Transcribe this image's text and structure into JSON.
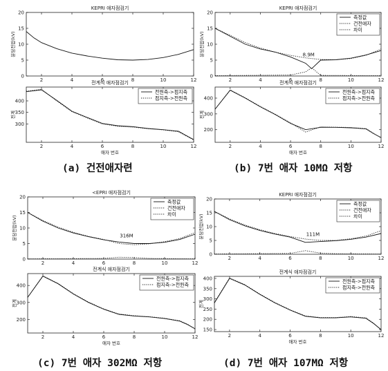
{
  "captions": [
    "(a) 건전애자련",
    "(b) 7번 애자 10MΩ 저항",
    "(c) 7번 애자 302MΩ 저항",
    "(d) 7번 애자 107MΩ 저항"
  ],
  "chart_data": [
    {
      "panel": "a-top",
      "type": "line",
      "title": "KEPRI 애자점검기",
      "xlabel": "",
      "ylabel": "분담전압(kV)",
      "xlim": [
        1,
        12
      ],
      "ylim": [
        0,
        20
      ],
      "xticks": [
        2,
        4,
        6,
        8,
        10,
        12
      ],
      "yticks": [
        0,
        5,
        10,
        15,
        20
      ],
      "legend": null,
      "series": [
        {
          "style": "solid",
          "x": [
            1,
            1.5,
            2,
            3,
            4,
            5,
            6,
            7,
            8,
            9,
            10,
            11,
            12
          ],
          "y": [
            14,
            12,
            10.5,
            8.6,
            7.2,
            6.3,
            5.6,
            5.1,
            5.0,
            5.2,
            5.8,
            6.8,
            8.3
          ]
        }
      ]
    },
    {
      "panel": "a-bottom",
      "type": "line",
      "title": "전계식 애자점검기",
      "xlabel": "애자 번호",
      "ylabel": "전계",
      "xlim": [
        1,
        12
      ],
      "ylim": [
        220,
        460
      ],
      "xticks": [
        2,
        4,
        6,
        8,
        10,
        12
      ],
      "yticks": [
        300,
        350,
        400
      ],
      "legend": {
        "position": "top-right",
        "entries": [
          "전원측->접지측",
          "접지측->전원측"
        ]
      },
      "series": [
        {
          "name": "전원측->접지측",
          "style": "solid",
          "x": [
            1,
            2,
            3,
            4,
            5,
            6,
            7,
            8,
            9,
            10,
            11,
            11.5,
            12
          ],
          "y": [
            440,
            448,
            402,
            355,
            328,
            302,
            292,
            288,
            280,
            275,
            268,
            250,
            232
          ]
        },
        {
          "name": "접지측->전원측",
          "style": "dotted",
          "x": [
            1,
            2,
            3,
            4,
            5,
            6,
            7,
            8,
            9,
            10,
            11,
            11.5,
            12
          ],
          "y": [
            442,
            450,
            400,
            353,
            326,
            300,
            290,
            286,
            279,
            274,
            266,
            248,
            230
          ]
        }
      ]
    },
    {
      "panel": "b-top",
      "type": "line",
      "title": "KEPRI 애자점검기",
      "xlabel": "",
      "ylabel": "분담전압(kV)",
      "xlim": [
        1,
        12
      ],
      "ylim": [
        0,
        20
      ],
      "xticks": [
        2,
        4,
        6,
        8,
        10,
        12
      ],
      "yticks": [
        0,
        5,
        10,
        15,
        20
      ],
      "legend": {
        "position": "top-right",
        "entries": [
          "측정값",
          "건전애자",
          "차이"
        ]
      },
      "annotation": {
        "text": "8.9M",
        "x": 7.2,
        "y": 6.2
      },
      "series": [
        {
          "name": "측정값",
          "style": "solid",
          "x": [
            1,
            2,
            3,
            4,
            5,
            6,
            7,
            7.4,
            8,
            9,
            10,
            11,
            12
          ],
          "y": [
            15,
            12.5,
            10,
            8.5,
            7.5,
            6.0,
            4.0,
            2.3,
            5.0,
            5.1,
            5.6,
            6.6,
            8.0
          ]
        },
        {
          "name": "건전애자",
          "style": "dotted",
          "x": [
            1,
            2,
            3,
            4,
            5,
            6,
            7,
            8,
            9,
            10,
            11,
            12
          ],
          "y": [
            15,
            12.8,
            10.5,
            8.8,
            7.5,
            6.5,
            5.7,
            5.2,
            5.1,
            5.5,
            6.5,
            8.5
          ]
        },
        {
          "name": "차이",
          "style": "dotted",
          "x": [
            1,
            6,
            7,
            7.4,
            8,
            12
          ],
          "y": [
            0.1,
            0.3,
            1.3,
            2.6,
            0.2,
            0.1
          ]
        }
      ]
    },
    {
      "panel": "b-bottom",
      "type": "line",
      "title": "전계식 애자점검기",
      "xlabel": "애자 번호",
      "ylabel": "전계",
      "xlim": [
        1,
        12
      ],
      "ylim": [
        120,
        470
      ],
      "xticks": [
        2,
        4,
        6,
        8,
        10,
        12
      ],
      "yticks": [
        200,
        300,
        400
      ],
      "legend": {
        "position": "top-right",
        "entries": [
          "전원측->접지측",
          "접지측->전원측"
        ]
      },
      "series": [
        {
          "name": "전원측->접지측",
          "style": "solid",
          "x": [
            1,
            2,
            3,
            4,
            5,
            6,
            7,
            8,
            9,
            10,
            11,
            11.5,
            12
          ],
          "y": [
            330,
            450,
            400,
            345,
            295,
            240,
            200,
            215,
            215,
            212,
            205,
            175,
            150
          ]
        },
        {
          "name": "접지측->전원측",
          "style": "dotted",
          "x": [
            1,
            2,
            3,
            4,
            5,
            6,
            7,
            8,
            9,
            10,
            11,
            11.5,
            12
          ],
          "y": [
            330,
            452,
            402,
            347,
            297,
            243,
            185,
            218,
            216,
            214,
            207,
            177,
            148
          ]
        }
      ]
    },
    {
      "panel": "c-top",
      "type": "line",
      "title": "<EPRI 애자점검기",
      "xlabel": "",
      "ylabel": "분담전압(kV)",
      "xlim": [
        1,
        12
      ],
      "ylim": [
        0,
        20
      ],
      "xticks": [
        2,
        4,
        6,
        8,
        10,
        12
      ],
      "yticks": [
        0,
        5,
        10,
        15,
        20
      ],
      "legend": {
        "position": "top-right",
        "entries": [
          "측정값",
          "건전애자",
          "차이"
        ]
      },
      "annotation": {
        "text": "316M",
        "x": 7.5,
        "y": 7.0
      },
      "series": [
        {
          "name": "측정값",
          "style": "solid",
          "x": [
            1,
            2,
            3,
            4,
            5,
            6,
            7,
            8,
            9,
            10,
            11,
            12
          ],
          "y": [
            15,
            12.2,
            10,
            8.4,
            7.2,
            6.2,
            5.5,
            5.0,
            5.0,
            5.4,
            6.3,
            8.0
          ]
        },
        {
          "name": "건전애자",
          "style": "dotted",
          "x": [
            1,
            2,
            3,
            4,
            5,
            6,
            7,
            8,
            9,
            10,
            11,
            12
          ],
          "y": [
            15,
            12.4,
            10.3,
            8.6,
            7.3,
            6.3,
            5.0,
            4.6,
            4.9,
            5.6,
            6.6,
            8.5
          ]
        },
        {
          "name": "차이",
          "style": "dotted",
          "x": [
            1,
            6,
            7,
            8,
            9,
            12
          ],
          "y": [
            0.1,
            0.2,
            0.6,
            0.5,
            0.2,
            0.1
          ]
        }
      ]
    },
    {
      "panel": "c-bottom",
      "type": "line",
      "title": "전계식 애자점검기",
      "xlabel": "애자 번호",
      "ylabel": "전계",
      "xlim": [
        1,
        12
      ],
      "ylim": [
        120,
        470
      ],
      "xticks": [
        2,
        4,
        6,
        8,
        10,
        12
      ],
      "yticks": [
        200,
        300,
        400
      ],
      "legend": {
        "position": "top-right",
        "entries": [
          "전원측->접지측",
          "접지측->전원측"
        ]
      },
      "series": [
        {
          "name": "전원측->접지측",
          "style": "solid",
          "x": [
            1,
            2,
            3,
            4,
            5,
            6,
            7,
            8,
            9,
            10,
            11,
            11.5,
            12
          ],
          "y": [
            330,
            455,
            410,
            350,
            300,
            260,
            230,
            220,
            215,
            205,
            190,
            170,
            145
          ]
        },
        {
          "name": "접지측->전원측",
          "style": "dotted",
          "x": [
            1,
            2,
            3,
            4,
            5,
            6,
            7,
            8,
            9,
            10,
            11,
            11.5,
            12
          ],
          "y": [
            330,
            457,
            412,
            352,
            302,
            262,
            232,
            222,
            216,
            207,
            192,
            172,
            143
          ]
        }
      ]
    },
    {
      "panel": "d-top",
      "type": "line",
      "title": "KEPRI 애자점검기",
      "xlabel": "",
      "ylabel": "분담전압(kV)",
      "xlim": [
        1,
        12
      ],
      "ylim": [
        0,
        20
      ],
      "xticks": [
        2,
        4,
        6,
        8,
        10,
        12
      ],
      "yticks": [
        0,
        5,
        10,
        15,
        20
      ],
      "legend": {
        "position": "top-right",
        "entries": [
          "측정값",
          "건전애자",
          "차이"
        ]
      },
      "annotation": {
        "text": "111M",
        "x": 7.5,
        "y": 6.6
      },
      "series": [
        {
          "name": "측정값",
          "style": "solid",
          "x": [
            1,
            2,
            3,
            4,
            5,
            6,
            7,
            8,
            9,
            10,
            11,
            12
          ],
          "y": [
            15.5,
            12.5,
            10.3,
            8.6,
            7.3,
            6.2,
            4.3,
            4.6,
            4.9,
            5.4,
            6.2,
            7.5
          ]
        },
        {
          "name": "건전애자",
          "style": "dotted",
          "x": [
            1,
            2,
            3,
            4,
            5,
            6,
            7,
            8,
            9,
            10,
            11,
            12
          ],
          "y": [
            15.5,
            12.8,
            10.6,
            8.9,
            7.5,
            6.4,
            5.5,
            5.0,
            5.0,
            5.6,
            6.6,
            8.5
          ]
        },
        {
          "name": "차이",
          "style": "dotted",
          "x": [
            1,
            6,
            7,
            8,
            9,
            12
          ],
          "y": [
            0.1,
            0.3,
            1.3,
            0.4,
            0.2,
            0.1
          ]
        }
      ]
    },
    {
      "panel": "d-bottom",
      "type": "line",
      "title": "전계식 애자점검기",
      "xlabel": "애자 번호",
      "ylabel": "전계",
      "xlim": [
        1,
        12
      ],
      "ylim": [
        140,
        410
      ],
      "xticks": [
        2,
        4,
        6,
        8,
        10,
        12
      ],
      "yticks": [
        150,
        200,
        250,
        300,
        350,
        400
      ],
      "legend": {
        "position": "top-right",
        "entries": [
          "전원측->접지측",
          "접지측->전원측"
        ]
      },
      "series": [
        {
          "name": "전원측->접지측",
          "style": "solid",
          "x": [
            1,
            2,
            3,
            4,
            5,
            6,
            7,
            8,
            9,
            10,
            11,
            11.5,
            12
          ],
          "y": [
            280,
            400,
            368,
            322,
            280,
            245,
            215,
            207,
            207,
            212,
            205,
            180,
            150
          ]
        },
        {
          "name": "접지측->전원측",
          "style": "dotted",
          "x": [
            1,
            2,
            3,
            4,
            5,
            6,
            7,
            8,
            9,
            10,
            11,
            11.5,
            12
          ],
          "y": [
            282,
            402,
            370,
            324,
            282,
            247,
            217,
            209,
            209,
            214,
            207,
            182,
            148
          ]
        }
      ]
    }
  ]
}
